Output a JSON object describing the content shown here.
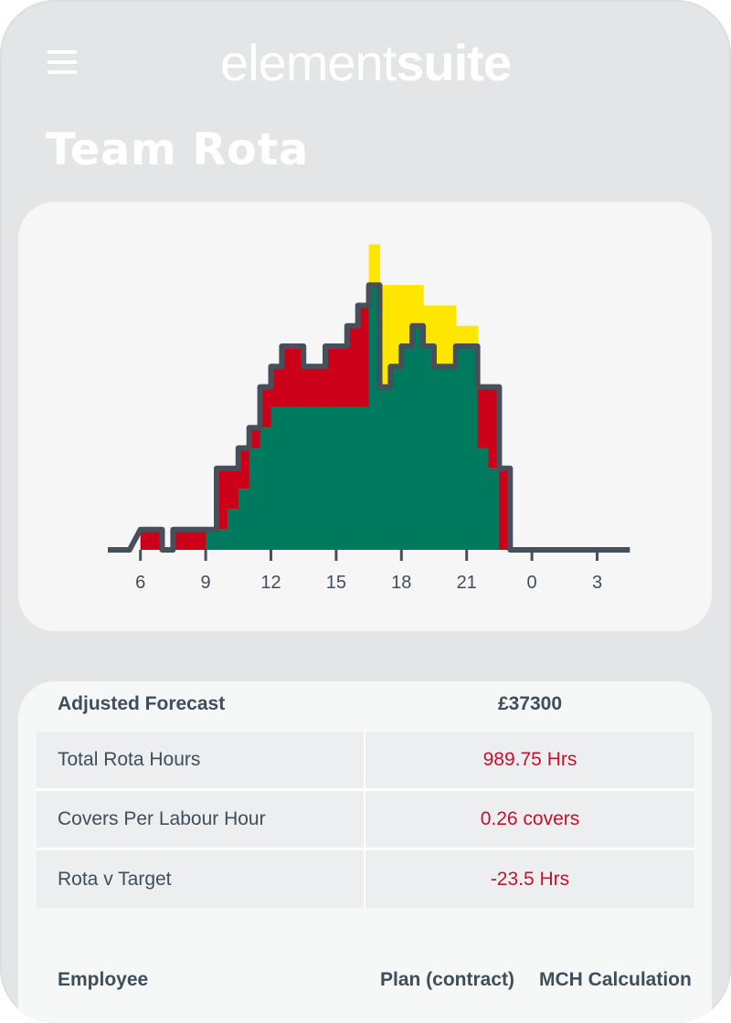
{
  "header": {
    "brand_light": "element",
    "brand_bold": "suite",
    "menu_icon": "hamburger-menu-icon"
  },
  "page": {
    "title": "Team Rota"
  },
  "chart_data": {
    "type": "area",
    "x_ticks": [
      "6",
      "9",
      "12",
      "15",
      "18",
      "21",
      "0",
      "3"
    ],
    "x_hours": [
      4.5,
      5,
      6,
      6.5,
      7,
      7.5,
      8,
      8.5,
      9,
      9.5,
      10,
      10.5,
      11,
      11.5,
      12,
      12.5,
      13,
      13.5,
      14,
      14.5,
      15,
      15.5,
      16,
      16.5,
      17,
      17.5,
      18,
      18.5,
      19,
      19.5,
      20,
      20.5,
      21,
      21.5,
      22,
      22.5,
      23,
      23.5,
      24,
      24.5,
      25,
      25.5,
      26,
      26.5,
      27,
      27.5
    ],
    "colors": {
      "over": "#cc0019",
      "under": "#ffe600",
      "match": "#007a5e",
      "line": "#46505a"
    },
    "series": [
      {
        "key": "scheduled",
        "values": [
          0,
          0,
          1,
          1,
          0,
          1,
          1,
          1,
          1,
          4,
          4,
          5,
          6,
          8,
          9,
          10,
          10,
          9,
          9,
          10,
          10,
          11,
          12,
          13,
          8,
          9,
          10,
          11,
          10,
          9,
          9,
          10,
          10,
          8,
          8,
          4,
          0,
          0,
          0,
          0,
          0,
          0,
          0,
          0,
          0,
          0
        ]
      },
      {
        "key": "required",
        "values": [
          0,
          0,
          0,
          0,
          0,
          0,
          0,
          0,
          1,
          1,
          2,
          3,
          5,
          6,
          7,
          7,
          7,
          7,
          7,
          7,
          7,
          7,
          7,
          15,
          13,
          13,
          13,
          13,
          12,
          12,
          12,
          11,
          11,
          5,
          4,
          0,
          0,
          0,
          0,
          0,
          0,
          0,
          0,
          0,
          0,
          0
        ]
      }
    ],
    "grid": false,
    "legend": "none"
  },
  "stats": {
    "head": {
      "label": "Adjusted Forecast",
      "value": "£37300"
    },
    "rows": [
      {
        "label": "Total Rota Hours",
        "value": "989.75 Hrs"
      },
      {
        "label": "Covers Per Labour Hour",
        "value": "0.26 covers"
      },
      {
        "label": "Rota v Target",
        "value": "-23.5 Hrs"
      }
    ],
    "value_color": "#c8102e"
  },
  "table": {
    "col_employee": "Employee",
    "col_plan": "Plan (contract)",
    "col_mch": "MCH Calculation"
  }
}
